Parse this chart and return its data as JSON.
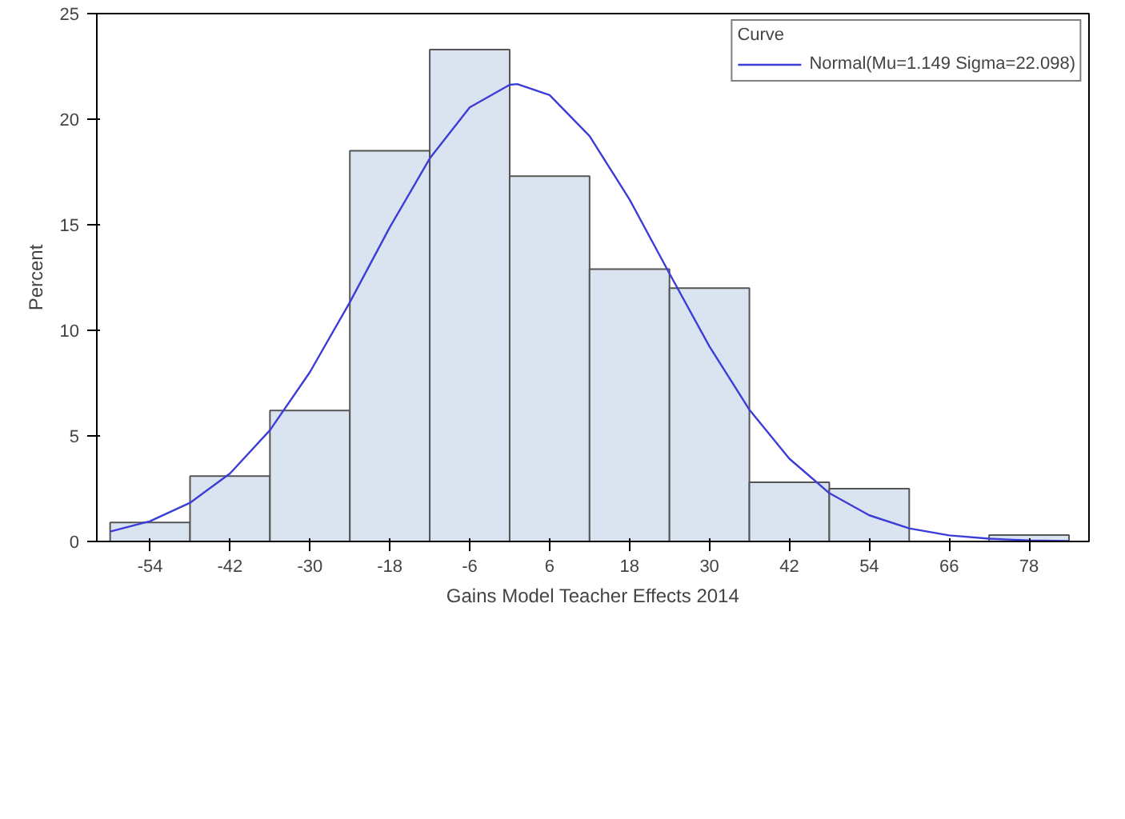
{
  "chart_data": {
    "type": "histogram",
    "xlabel": "Gains Model Teacher Effects 2014",
    "ylabel": "Percent",
    "bins": [
      -60,
      -48,
      -36,
      -24,
      -12,
      0,
      12,
      24,
      36,
      48,
      60,
      72,
      84
    ],
    "values": [
      0.9,
      3.1,
      6.2,
      18.5,
      23.3,
      17.3,
      12.9,
      12.0,
      2.8,
      2.5,
      0,
      0.3
    ],
    "color": "#dae4f0",
    "xlim": [
      -62,
      87
    ],
    "xticks": [
      -54,
      -42,
      -30,
      -18,
      -6,
      6,
      18,
      30,
      42,
      54,
      66,
      78
    ],
    "ylim": [
      0,
      25
    ],
    "yticks": [
      0,
      5,
      10,
      15,
      20,
      25
    ],
    "grid": false,
    "legend": "top right",
    "legend_title": "Curve",
    "series": [
      {
        "type": "line",
        "name": "Normal(Mu=1.149 Sigma=22.098)",
        "color": "#3c3cd8",
        "x": [
          -60,
          -54,
          -48,
          -42,
          -36,
          -30,
          -24,
          -18,
          -12,
          -6,
          0,
          1.149,
          6,
          12,
          18,
          24,
          30,
          36,
          42,
          48,
          54,
          60,
          66,
          72,
          78,
          84
        ],
        "values": [
          0.47,
          0.96,
          1.83,
          3.22,
          5.27,
          8.02,
          11.33,
          14.88,
          18.14,
          20.56,
          21.63,
          21.66,
          21.14,
          19.2,
          16.2,
          12.69,
          9.24,
          6.24,
          3.92,
          2.29,
          1.24,
          0.62,
          0.29,
          0.13,
          0.05,
          0.02
        ]
      }
    ]
  }
}
